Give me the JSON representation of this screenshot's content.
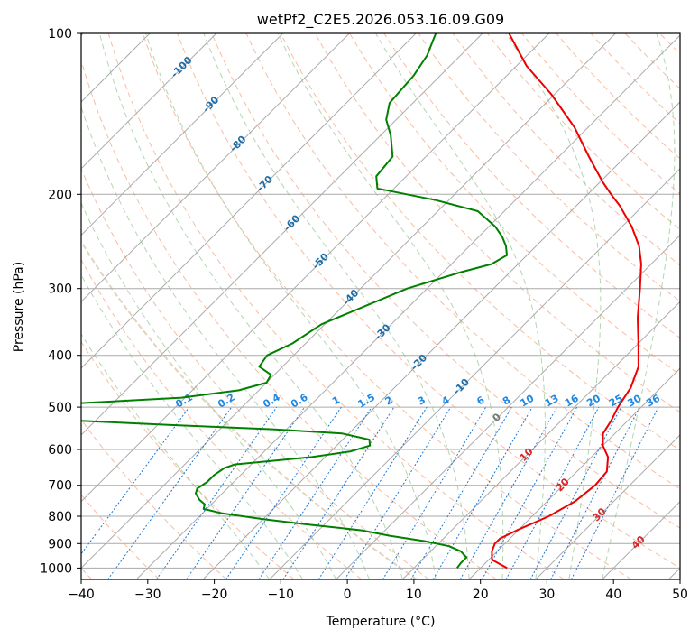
{
  "chart_data": {
    "type": "line",
    "title": "wetPf2_C2E5.2026.053.16.09.G09",
    "xlabel": "Temperature (°C)",
    "ylabel": "Pressure (hPa)",
    "xlim": [
      -40,
      50
    ],
    "ylim": [
      1050,
      100
    ],
    "x_ticks": [
      -40,
      -30,
      -20,
      -10,
      0,
      10,
      20,
      30,
      40,
      50
    ],
    "x_tick_labels": [
      "−40",
      "−30",
      "−20",
      "−10",
      "0",
      "10",
      "20",
      "30",
      "40",
      "50"
    ],
    "y_ticks": [
      100,
      200,
      300,
      400,
      500,
      600,
      700,
      800,
      900,
      1000
    ],
    "y_tick_labels": [
      "100",
      "200",
      "300",
      "400",
      "500",
      "600",
      "700",
      "800",
      "900",
      "1000"
    ],
    "isotherm_labels": [
      {
        "text": "-100",
        "value": -100,
        "p": 115
      },
      {
        "text": "-90",
        "value": -90,
        "p": 135
      },
      {
        "text": "-80",
        "value": -80,
        "p": 160
      },
      {
        "text": "-70",
        "value": -70,
        "p": 190
      },
      {
        "text": "-60",
        "value": -60,
        "p": 225
      },
      {
        "text": "-50",
        "value": -50,
        "p": 265
      },
      {
        "text": "-40",
        "value": -40,
        "p": 310
      },
      {
        "text": "-30",
        "value": -30,
        "p": 360
      },
      {
        "text": "-20",
        "value": -20,
        "p": 410
      },
      {
        "text": "-10",
        "value": -10,
        "p": 455
      },
      {
        "text": "0",
        "value": 0,
        "p": 520
      },
      {
        "text": "10",
        "value": 10,
        "p": 610
      },
      {
        "text": "20",
        "value": 20,
        "p": 695
      },
      {
        "text": "30",
        "value": 30,
        "p": 790
      },
      {
        "text": "40",
        "value": 40,
        "p": 890
      }
    ],
    "mixing_ratio_labels": [
      "0.1",
      "0.2",
      "0.4",
      "0.6",
      "1",
      "1.5",
      "2",
      "3",
      "4",
      "6",
      "8",
      "10",
      "13",
      "16",
      "20",
      "25",
      "30",
      "36"
    ],
    "mixing_ratio_values": [
      0.1,
      0.2,
      0.4,
      0.6,
      1,
      1.5,
      2,
      3,
      4,
      6,
      8,
      10,
      13,
      16,
      20,
      25,
      30,
      36
    ],
    "series": [
      {
        "name": "temperature",
        "color": "#ee0000",
        "points": [
          {
            "p": 1000,
            "t": 24
          },
          {
            "p": 965,
            "t": 20.5
          },
          {
            "p": 930,
            "t": 19.2
          },
          {
            "p": 900,
            "t": 18.5
          },
          {
            "p": 880,
            "t": 18.5
          },
          {
            "p": 850,
            "t": 19.8
          },
          {
            "p": 800,
            "t": 22.5
          },
          {
            "p": 750,
            "t": 24.2
          },
          {
            "p": 700,
            "t": 24.8
          },
          {
            "p": 660,
            "t": 24.5
          },
          {
            "p": 620,
            "t": 22.5
          },
          {
            "p": 590,
            "t": 20.0
          },
          {
            "p": 560,
            "t": 18.2
          },
          {
            "p": 530,
            "t": 17.5
          },
          {
            "p": 500,
            "t": 16.5
          },
          {
            "p": 460,
            "t": 15.5
          },
          {
            "p": 420,
            "t": 13.5
          },
          {
            "p": 380,
            "t": 10.0
          },
          {
            "p": 340,
            "t": 6.0
          },
          {
            "p": 300,
            "t": 2.0
          },
          {
            "p": 270,
            "t": -1.5
          },
          {
            "p": 250,
            "t": -4.5
          },
          {
            "p": 230,
            "t": -8.5
          },
          {
            "p": 210,
            "t": -13.5
          },
          {
            "p": 200,
            "t": -16.5
          },
          {
            "p": 190,
            "t": -19.5
          },
          {
            "p": 170,
            "t": -25.5
          },
          {
            "p": 150,
            "t": -32.0
          },
          {
            "p": 130,
            "t": -40.5
          },
          {
            "p": 115,
            "t": -48.5
          },
          {
            "p": 100,
            "t": -56.0
          }
        ]
      },
      {
        "name": "dewpoint",
        "color": "#008000",
        "points": [
          {
            "p": 1000,
            "t": 16.5
          },
          {
            "p": 980,
            "t": 16.3
          },
          {
            "p": 955,
            "t": 16.3
          },
          {
            "p": 930,
            "t": 14.5
          },
          {
            "p": 910,
            "t": 12.0
          },
          {
            "p": 890,
            "t": 7.5
          },
          {
            "p": 870,
            "t": 1.5
          },
          {
            "p": 850,
            "t": -3.5
          },
          {
            "p": 830,
            "t": -12.0
          },
          {
            "p": 810,
            "t": -20.0
          },
          {
            "p": 790,
            "t": -27.0
          },
          {
            "p": 775,
            "t": -30.5
          },
          {
            "p": 760,
            "t": -31.0
          },
          {
            "p": 745,
            "t": -32.5
          },
          {
            "p": 725,
            "t": -34.0
          },
          {
            "p": 710,
            "t": -34.5
          },
          {
            "p": 690,
            "t": -34.0
          },
          {
            "p": 670,
            "t": -34.0
          },
          {
            "p": 650,
            "t": -33.5
          },
          {
            "p": 640,
            "t": -32.5
          },
          {
            "p": 620,
            "t": -22.0
          },
          {
            "p": 605,
            "t": -17.0
          },
          {
            "p": 590,
            "t": -15.0
          },
          {
            "p": 575,
            "t": -16.0
          },
          {
            "p": 560,
            "t": -21.0
          },
          {
            "p": 550,
            "t": -32.0
          },
          {
            "p": 540,
            "t": -48.0
          },
          {
            "p": 525,
            "t": -70.0
          },
          {
            "p": 512,
            "t": -80.0
          },
          {
            "p": 500,
            "t": -80.0
          },
          {
            "p": 494,
            "t": -68.0
          },
          {
            "p": 480,
            "t": -50.5
          },
          {
            "p": 465,
            "t": -43.0
          },
          {
            "p": 450,
            "t": -40.0
          },
          {
            "p": 435,
            "t": -40.5
          },
          {
            "p": 420,
            "t": -43.5
          },
          {
            "p": 400,
            "t": -44.0
          },
          {
            "p": 380,
            "t": -42.0
          },
          {
            "p": 350,
            "t": -40.5
          },
          {
            "p": 300,
            "t": -33.0
          },
          {
            "p": 280,
            "t": -27.5
          },
          {
            "p": 270,
            "t": -24.0
          },
          {
            "p": 260,
            "t": -23.0
          },
          {
            "p": 250,
            "t": -24.5
          },
          {
            "p": 240,
            "t": -26.5
          },
          {
            "p": 230,
            "t": -29.0
          },
          {
            "p": 215,
            "t": -34.0
          },
          {
            "p": 205,
            "t": -42.0
          },
          {
            "p": 195,
            "t": -52.5
          },
          {
            "p": 185,
            "t": -54.5
          },
          {
            "p": 170,
            "t": -55.0
          },
          {
            "p": 155,
            "t": -58.5
          },
          {
            "p": 145,
            "t": -61.5
          },
          {
            "p": 135,
            "t": -63.5
          },
          {
            "p": 120,
            "t": -64.0
          },
          {
            "p": 110,
            "t": -65.0
          },
          {
            "p": 100,
            "t": -67.0
          }
        ]
      }
    ],
    "colors": {
      "isotherm": "#aaaaaa",
      "isobar": "#aaaaaa",
      "dry_adiabat": "#f4a582",
      "moist_adiabat": "#92c58f",
      "mixing_ratio": "#1f77d4",
      "label_blue": "#1f6ea8",
      "label_red": "#d62728",
      "label_zero": "#777777",
      "mixing_label": "#1e88e5",
      "extra_curve": "#d2b48c"
    },
    "grid": true
  }
}
